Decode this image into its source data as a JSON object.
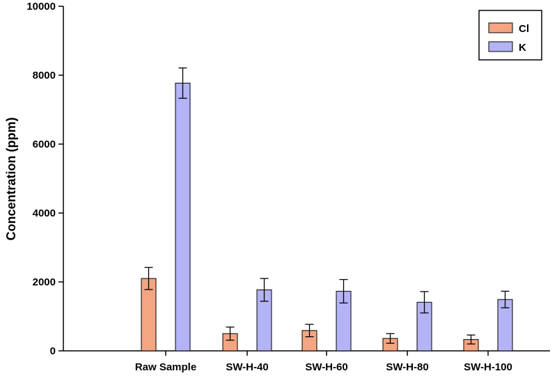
{
  "chart_data": {
    "type": "bar",
    "title": "",
    "xlabel": "",
    "ylabel": "Concentration (ppm)",
    "ylim": [
      0,
      10000
    ],
    "yticks": [
      "0",
      "2000",
      "4000",
      "6000",
      "8000",
      "10000"
    ],
    "categories": [
      "Raw Sample",
      "SW-H-40",
      "SW-H-60",
      "SW-H-80",
      "SW-H-100"
    ],
    "series": [
      {
        "name": "Cl",
        "color": "#f4a582",
        "values": [
          2100,
          500,
          590,
          360,
          330
        ],
        "errors": [
          320,
          190,
          180,
          140,
          130
        ]
      },
      {
        "name": "K",
        "color": "#b3b3f5",
        "values": [
          7770,
          1770,
          1730,
          1410,
          1490
        ],
        "errors": [
          440,
          330,
          340,
          310,
          240
        ]
      }
    ],
    "grid": false,
    "legend_position": "top-right"
  }
}
